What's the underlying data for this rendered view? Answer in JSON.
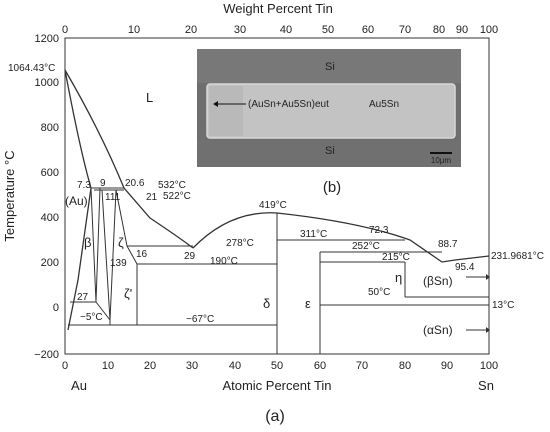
{
  "top_axis": {
    "title": "Weight Percent Tin",
    "ticks": [
      "0",
      "10",
      "20",
      "30",
      "40",
      "50",
      "60",
      "70",
      "80",
      "90",
      "100"
    ]
  },
  "bottom_axis": {
    "title": "Atomic Percent Tin",
    "ticks": [
      "0",
      "10",
      "20",
      "30",
      "40",
      "50",
      "60",
      "70",
      "80",
      "90",
      "100"
    ],
    "end_left": "Au",
    "end_right": "Sn"
  },
  "y_axis": {
    "title": "Temperature °C",
    "ticks": [
      "1200",
      "1000",
      "800",
      "600",
      "400",
      "200",
      "0",
      "−200"
    ]
  },
  "labels": {
    "melt_au": "1064.43°C",
    "liquid": "L",
    "v73": "7.3",
    "v9": "9",
    "v206": "20.6",
    "t532": "532°C",
    "au_phase": "(Au)",
    "v111": "111",
    "v21": "21",
    "t522": "522°C",
    "beta": "β",
    "zeta": "ζ",
    "v16": "16",
    "v139": "139",
    "v29": "29",
    "t278": "278°C",
    "t419": "419°C",
    "t311": "311°C",
    "v723": "72.3",
    "t252": "252°C",
    "v887": "88.7",
    "v954": "95.4",
    "melt_sn": "231.9681°C",
    "t190": "190°C",
    "t215": "215°C",
    "eta": "η",
    "beta_sn": "(βSn)",
    "v27": "27",
    "zeta_p": "ζ'",
    "t_m5": "−5°C",
    "t_m67": "−67°C",
    "delta": "δ",
    "epsilon": "ε",
    "t50": "50°C",
    "t13": "13°C",
    "alpha_sn": "(αSn)"
  },
  "inset": {
    "top_layer": "Si",
    "bottom_layer": "Si",
    "phase_left": "(AuSn+Au5Sn)eut",
    "phase_right": "Au5Sn",
    "scale_bar": "10μm",
    "panel": "(b)"
  },
  "panel_label": "(a)"
}
